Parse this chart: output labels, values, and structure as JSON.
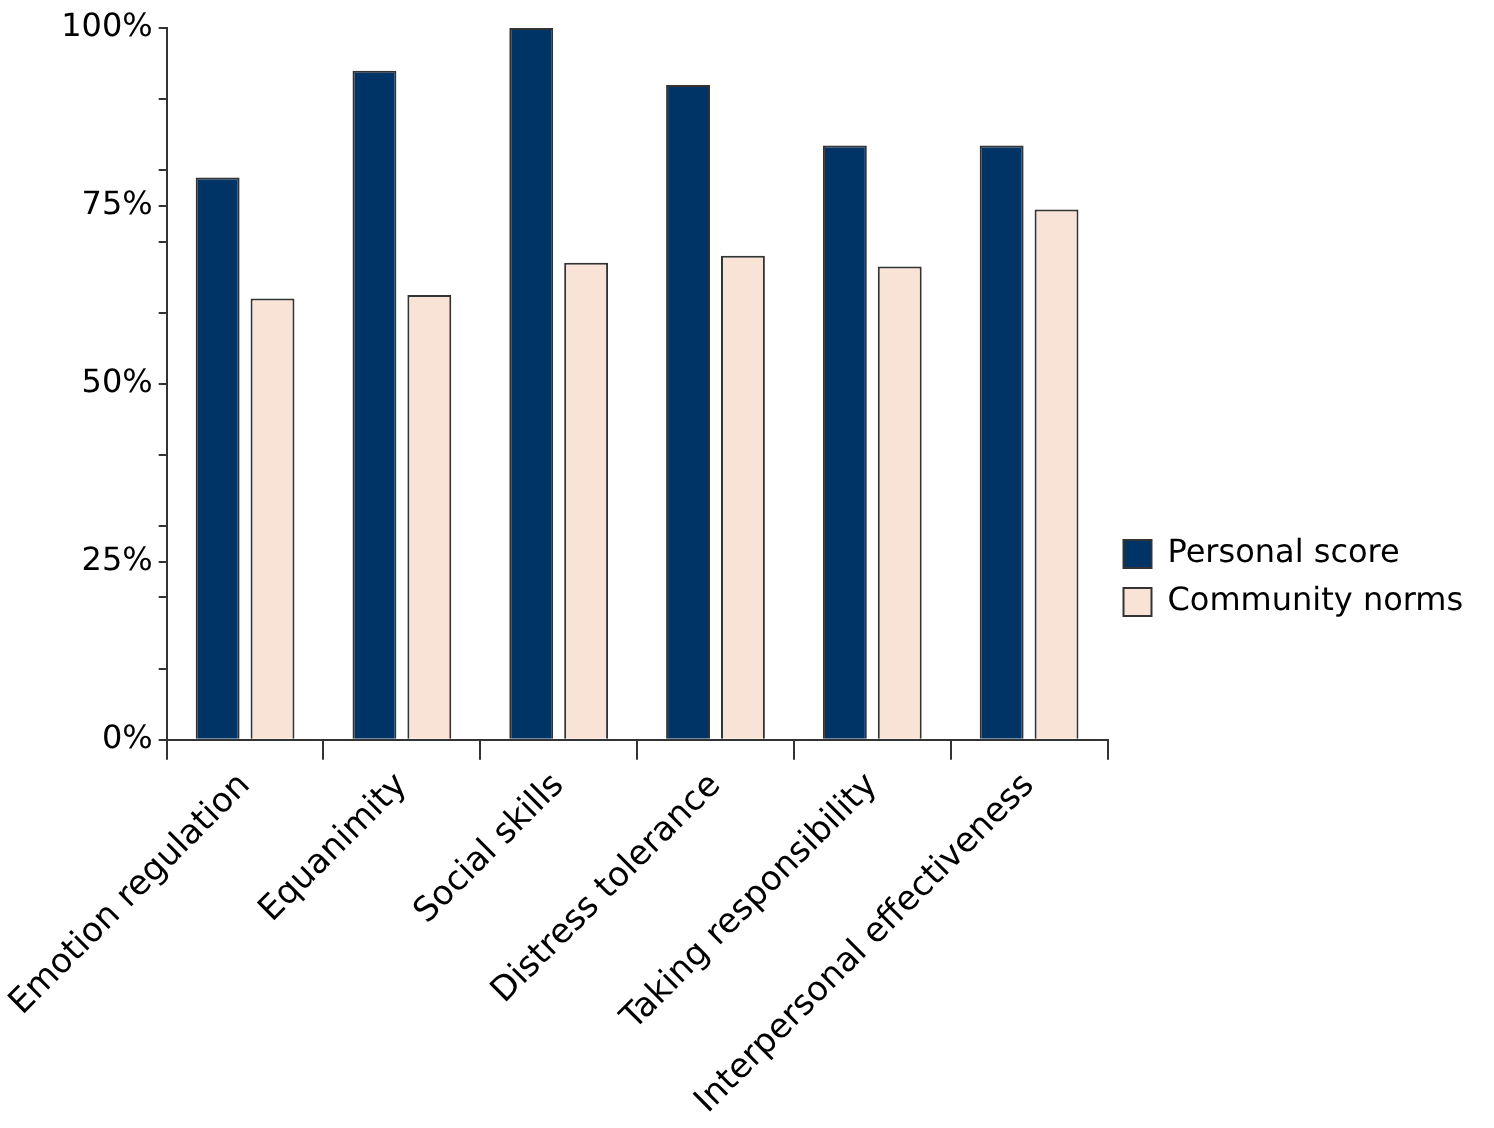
{
  "chart_data": {
    "type": "bar",
    "categories": [
      "Emotion regulation",
      "Equanimity",
      "Social skills",
      "Distress tolerance",
      "Taking responsibility",
      "Interpersonal effectiveness"
    ],
    "series": [
      {
        "name": "Personal score",
        "color": "#003366",
        "values": [
          79,
          94,
          100,
          92,
          83.5,
          83.5
        ]
      },
      {
        "name": "Community norms",
        "color": "#f9e3d6",
        "values": [
          62,
          62.5,
          67,
          68,
          66.5,
          74.5
        ]
      }
    ],
    "ylim": [
      0,
      100
    ],
    "yticks": [
      {
        "value": 0,
        "label": "0%"
      },
      {
        "value": 10,
        "label": null
      },
      {
        "value": 20,
        "label": null
      },
      {
        "value": 25,
        "label": "25%"
      },
      {
        "value": 30,
        "label": null
      },
      {
        "value": 40,
        "label": null
      },
      {
        "value": 50,
        "label": "50%"
      },
      {
        "value": 60,
        "label": null
      },
      {
        "value": 70,
        "label": null
      },
      {
        "value": 75,
        "label": "75%"
      },
      {
        "value": 80,
        "label": null
      },
      {
        "value": 90,
        "label": null
      },
      {
        "value": 100,
        "label": "100%"
      }
    ],
    "grid": false,
    "legend": "right"
  }
}
